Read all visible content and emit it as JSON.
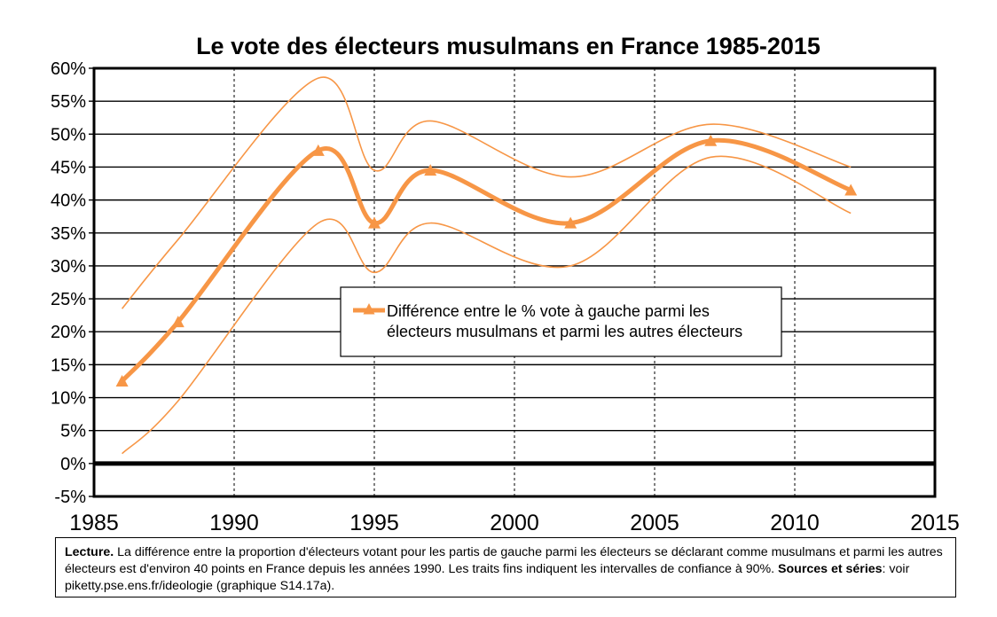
{
  "chart_data": {
    "type": "line",
    "title": "Le vote des électeurs musulmans en France 1985-2015",
    "xlabel": "",
    "ylabel": "",
    "xlim": [
      1985,
      2015
    ],
    "ylim": [
      -5,
      60
    ],
    "x_ticks": [
      "1985",
      "1990",
      "1995",
      "2000",
      "2005",
      "2010",
      "2015"
    ],
    "y_ticks": [
      "60%",
      "55%",
      "50%",
      "45%",
      "40%",
      "35%",
      "30%",
      "25%",
      "20%",
      "15%",
      "10%",
      "5%",
      "0%",
      "-5%"
    ],
    "grid": true,
    "legend_position": "center-right",
    "colors": {
      "series": "#f79646",
      "zero_line": "#000000",
      "grid": "#000000"
    },
    "series": [
      {
        "name": "Différence entre le % vote à gauche parmi les électeurs musulmans et parmi les autres électeurs",
        "x": [
          1986,
          1988,
          1993,
          1995,
          1997,
          2002,
          2007,
          2012
        ],
        "values": [
          12.5,
          21.5,
          47.5,
          36.5,
          44.5,
          36.5,
          49,
          41.5
        ]
      }
    ],
    "confidence_band": {
      "upper": [
        23.5,
        34,
        58.5,
        44.5,
        52,
        43.5,
        51.5,
        45
      ],
      "lower": [
        1.5,
        9.5,
        36.5,
        29,
        36.5,
        30,
        46.5,
        38
      ]
    }
  },
  "legend": {
    "line1": "Différence entre le % vote à gauche parmi les",
    "line2": "électeurs musulmans et parmi les autres électeurs"
  },
  "note": {
    "lecture_label": "Lecture.",
    "lecture_text": " La différence entre la proportion d'électeurs votant pour les partis de gauche parmi les électeurs se déclarant comme musulmans et parmi les autres électeurs est d'environ 40 points en France depuis les années 1990. Les traits fins indiquent les intervalles de confiance à 90%.",
    "sources_label": "Sources et séries",
    "sources_text": ": voir piketty.pse.ens.fr/ideologie (graphique S14.17a)."
  }
}
